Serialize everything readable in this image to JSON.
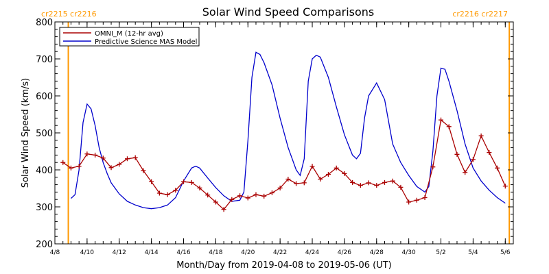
{
  "chart_data": {
    "type": "line",
    "title": "Solar Wind Speed Comparisons",
    "xlabel": "Month/Day from 2019-04-08 to 2019-05-06 (UT)",
    "ylabel": "Solar Wind Speed (km/s)",
    "xlim": [
      "2019-04-08T00:00",
      "2019-05-06T12:00"
    ],
    "ylim": [
      200,
      800
    ],
    "x_tick_labels": [
      {
        "date": "2019-04-08",
        "label": "4/8"
      },
      {
        "date": "2019-04-10",
        "label": "4/10"
      },
      {
        "date": "2019-04-12",
        "label": "4/12"
      },
      {
        "date": "2019-04-14",
        "label": "4/14"
      },
      {
        "date": "2019-04-16",
        "label": "4/16"
      },
      {
        "date": "2019-04-18",
        "label": "4/18"
      },
      {
        "date": "2019-04-20",
        "label": "4/20"
      },
      {
        "date": "2019-04-22",
        "label": "4/22"
      },
      {
        "date": "2019-04-24",
        "label": "4/24"
      },
      {
        "date": "2019-04-26",
        "label": "4/26"
      },
      {
        "date": "2019-04-28",
        "label": "4/28"
      },
      {
        "date": "2019-04-30",
        "label": "4/30"
      },
      {
        "date": "2019-05-02",
        "label": "5/2"
      },
      {
        "date": "2019-05-04",
        "label": "5/4"
      },
      {
        "date": "2019-05-06",
        "label": "5/6"
      }
    ],
    "y_ticks": [
      200,
      300,
      400,
      500,
      600,
      700,
      800
    ],
    "grid": false,
    "legend_position": "top-left",
    "series": [
      {
        "name": "OMNI_M (12-hr avg)",
        "color": "#aa0000",
        "marker": "plus",
        "x": [
          "2019-04-08T12:00",
          "2019-04-09T00:00",
          "2019-04-09T12:00",
          "2019-04-10T00:00",
          "2019-04-10T12:00",
          "2019-04-11T00:00",
          "2019-04-11T12:00",
          "2019-04-12T00:00",
          "2019-04-12T12:00",
          "2019-04-13T00:00",
          "2019-04-13T12:00",
          "2019-04-14T00:00",
          "2019-04-14T12:00",
          "2019-04-15T00:00",
          "2019-04-15T12:00",
          "2019-04-16T00:00",
          "2019-04-16T12:00",
          "2019-04-17T00:00",
          "2019-04-17T12:00",
          "2019-04-18T00:00",
          "2019-04-18T12:00",
          "2019-04-19T00:00",
          "2019-04-19T12:00",
          "2019-04-20T00:00",
          "2019-04-20T12:00",
          "2019-04-21T00:00",
          "2019-04-21T12:00",
          "2019-04-22T00:00",
          "2019-04-22T12:00",
          "2019-04-23T00:00",
          "2019-04-23T12:00",
          "2019-04-24T00:00",
          "2019-04-24T12:00",
          "2019-04-25T00:00",
          "2019-04-25T12:00",
          "2019-04-26T00:00",
          "2019-04-26T12:00",
          "2019-04-27T00:00",
          "2019-04-27T12:00",
          "2019-04-28T00:00",
          "2019-04-28T12:00",
          "2019-04-29T00:00",
          "2019-04-29T12:00",
          "2019-04-30T00:00",
          "2019-04-30T12:00",
          "2019-05-01T00:00",
          "2019-05-01T12:00",
          "2019-05-02T00:00",
          "2019-05-02T12:00",
          "2019-05-03T00:00",
          "2019-05-03T12:00",
          "2019-05-04T00:00",
          "2019-05-04T12:00",
          "2019-05-05T00:00",
          "2019-05-05T12:00",
          "2019-05-06T00:00"
        ],
        "values": [
          420,
          405,
          410,
          443,
          440,
          432,
          406,
          415,
          430,
          433,
          398,
          368,
          337,
          333,
          345,
          368,
          366,
          351,
          332,
          313,
          293,
          320,
          330,
          324,
          333,
          329,
          338,
          351,
          375,
          363,
          365,
          410,
          375,
          388,
          405,
          390,
          366,
          358,
          365,
          358,
          366,
          370,
          353,
          313,
          318,
          325,
          408,
          535,
          517,
          442,
          393,
          428,
          492,
          447,
          405,
          356
        ]
      },
      {
        "name": "Predictive Science MAS Model",
        "color": "#0000cc",
        "marker": "none",
        "x": [
          "2019-04-09T00:00",
          "2019-04-09T06:00",
          "2019-04-09T12:00",
          "2019-04-09T18:00",
          "2019-04-10T00:00",
          "2019-04-10T06:00",
          "2019-04-10T12:00",
          "2019-04-10T18:00",
          "2019-04-11T00:00",
          "2019-04-11T06:00",
          "2019-04-11T12:00",
          "2019-04-12T00:00",
          "2019-04-12T12:00",
          "2019-04-13T00:00",
          "2019-04-13T12:00",
          "2019-04-14T00:00",
          "2019-04-14T12:00",
          "2019-04-15T00:00",
          "2019-04-15T12:00",
          "2019-04-16T00:00",
          "2019-04-16T12:00",
          "2019-04-16T18:00",
          "2019-04-17T00:00",
          "2019-04-17T12:00",
          "2019-04-18T00:00",
          "2019-04-18T12:00",
          "2019-04-19T00:00",
          "2019-04-19T12:00",
          "2019-04-19T18:00",
          "2019-04-20T00:00",
          "2019-04-20T06:00",
          "2019-04-20T12:00",
          "2019-04-20T18:00",
          "2019-04-21T00:00",
          "2019-04-21T12:00",
          "2019-04-22T00:00",
          "2019-04-22T12:00",
          "2019-04-23T00:00",
          "2019-04-23T06:00",
          "2019-04-23T12:00",
          "2019-04-23T18:00",
          "2019-04-24T00:00",
          "2019-04-24T06:00",
          "2019-04-24T12:00",
          "2019-04-25T00:00",
          "2019-04-25T12:00",
          "2019-04-26T00:00",
          "2019-04-26T12:00",
          "2019-04-26T18:00",
          "2019-04-27T00:00",
          "2019-04-27T06:00",
          "2019-04-27T12:00",
          "2019-04-28T00:00",
          "2019-04-28T12:00",
          "2019-04-29T00:00",
          "2019-04-29T12:00",
          "2019-04-30T00:00",
          "2019-04-30T12:00",
          "2019-05-01T00:00",
          "2019-05-01T06:00",
          "2019-05-01T12:00",
          "2019-05-01T18:00",
          "2019-05-02T00:00",
          "2019-05-02T06:00",
          "2019-05-02T12:00",
          "2019-05-03T00:00",
          "2019-05-03T12:00",
          "2019-05-04T00:00",
          "2019-05-04T12:00",
          "2019-05-05T00:00",
          "2019-05-05T12:00",
          "2019-05-06T00:00"
        ],
        "values": [
          323,
          333,
          400,
          528,
          578,
          565,
          520,
          460,
          420,
          390,
          365,
          335,
          315,
          305,
          298,
          295,
          298,
          305,
          325,
          370,
          405,
          410,
          405,
          378,
          352,
          330,
          315,
          318,
          340,
          480,
          650,
          718,
          712,
          690,
          630,
          540,
          460,
          400,
          385,
          430,
          640,
          700,
          710,
          705,
          650,
          570,
          495,
          440,
          430,
          445,
          540,
          600,
          635,
          590,
          470,
          420,
          385,
          355,
          340,
          355,
          450,
          600,
          675,
          672,
          640,
          560,
          470,
          405,
          370,
          345,
          325,
          310
        ]
      }
    ],
    "vertical_markers": [
      {
        "date": "2019-04-08T20:00",
        "label": "cr2215 cr2216",
        "color": "#ff9900"
      },
      {
        "date": "2019-05-06T06:00",
        "label": "cr2216 cr2217",
        "color": "#ff9900"
      }
    ]
  }
}
